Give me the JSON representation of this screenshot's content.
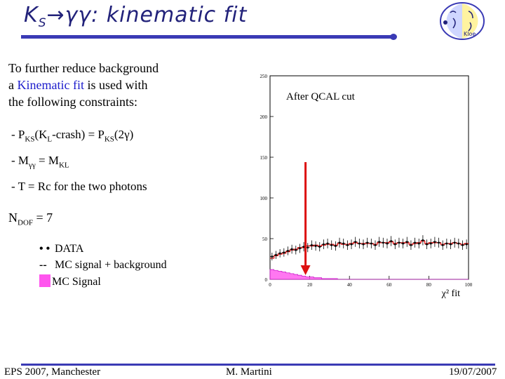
{
  "title": {
    "main": "K",
    "sub": "S",
    "rest": "→γγ: kinematic fit"
  },
  "logo": {
    "text": "Kloe"
  },
  "intro": {
    "line1": "To further reduce background",
    "line2_pre": "a ",
    "line2_link": "Kinematic fit",
    "line2_post": "  is used with",
    "line3": "the following constraints:"
  },
  "constraints": [
    {
      "a": "-  P",
      "a_sub": "KS",
      "b": "(K",
      "b_sub": "L",
      "c": "-crash) = P",
      "c_sub": "KS",
      "d": "(2γ)"
    },
    {
      "a": "-  M",
      "a_sub": "γγ",
      "b": " = M",
      "b_sub": "KL",
      "c": "",
      "c_sub": "",
      "d": ""
    },
    {
      "a": "-  T = Rc for the two photons",
      "a_sub": "",
      "b": "",
      "b_sub": "",
      "c": "",
      "c_sub": "",
      "d": ""
    }
  ],
  "ndof": {
    "label": "N",
    "sub": "DOF",
    "value": " = 7"
  },
  "legend": [
    {
      "mark": "• •",
      "label": "DATA"
    },
    {
      "mark": "--",
      "label": "MC signal + background"
    },
    {
      "mark": "",
      "label": "MC Signal"
    }
  ],
  "plot": {
    "annotation": "After QCAL cut",
    "x_label": "χ² fit"
  },
  "colors": {
    "title": "#22227a",
    "rule": "#3a3ab5",
    "mc_total": "#dd1111",
    "mc_signal": "#ff55ee",
    "arrow": "#dd1111",
    "highlight": "#1c1ccc"
  },
  "chart_data": {
    "type": "histogram",
    "annotation": "After QCAL cut",
    "xlabel": "χ² fit",
    "xlim": [
      0,
      100
    ],
    "ylim": [
      0,
      250
    ],
    "y_ticks": [
      0,
      50,
      100,
      150,
      200,
      250
    ],
    "x_ticks": [
      0,
      20,
      40,
      60,
      80,
      100
    ],
    "cut_arrow_x": 20,
    "bins": [
      0,
      2,
      4,
      6,
      8,
      10,
      12,
      14,
      16,
      18,
      20,
      22,
      24,
      26,
      28,
      30,
      32,
      34,
      36,
      38,
      40,
      42,
      44,
      46,
      48,
      50,
      52,
      54,
      56,
      58,
      60,
      62,
      64,
      66,
      68,
      70,
      72,
      74,
      76,
      78,
      80,
      82,
      84,
      86,
      88,
      90,
      92,
      94,
      96,
      98
    ],
    "series": [
      {
        "name": "DATA",
        "values": [
          28,
          30,
          32,
          33,
          35,
          37,
          36,
          38,
          40,
          39,
          42,
          41,
          40,
          43,
          44,
          42,
          41,
          45,
          44,
          42,
          43,
          46,
          44,
          43,
          45,
          44,
          42,
          46,
          45,
          44,
          47,
          43,
          45,
          44,
          46,
          42,
          45,
          44,
          48,
          43,
          44,
          46,
          45,
          42,
          44,
          43,
          45,
          44,
          42,
          43
        ]
      },
      {
        "name": "MC signal + background",
        "values": [
          26,
          29,
          31,
          32,
          34,
          36,
          37,
          39,
          39,
          41,
          41,
          42,
          41,
          42,
          43,
          43,
          42,
          44,
          43,
          43,
          44,
          45,
          44,
          44,
          44,
          44,
          43,
          45,
          45,
          45,
          46,
          44,
          45,
          45,
          45,
          43,
          44,
          45,
          47,
          44,
          45,
          45,
          45,
          43,
          44,
          44,
          45,
          44,
          43,
          44
        ]
      },
      {
        "name": "MC Signal",
        "values": [
          12,
          11,
          10,
          9,
          8,
          7,
          6,
          5,
          4,
          3,
          3,
          2,
          2,
          1,
          1,
          1,
          1,
          0,
          0,
          0,
          0,
          0,
          0,
          0,
          0,
          0,
          0,
          0,
          0,
          0,
          0,
          0,
          0,
          0,
          0,
          0,
          0,
          0,
          0,
          0,
          0,
          0,
          0,
          0,
          0,
          0,
          0,
          0,
          0,
          0
        ]
      }
    ]
  },
  "footer": {
    "left": "EPS 2007, Manchester",
    "center": "M. Martini",
    "right": "19/07/2007"
  }
}
